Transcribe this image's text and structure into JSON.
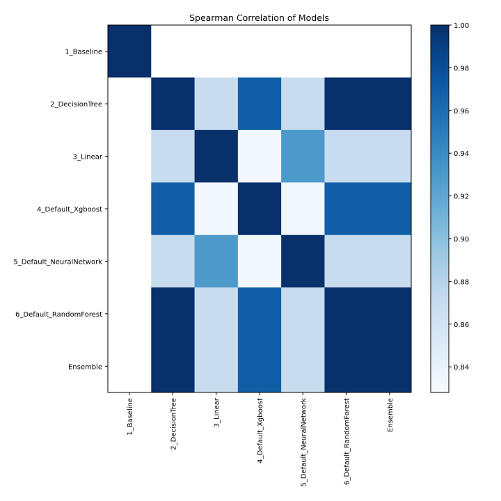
{
  "chart_data": {
    "type": "heatmap",
    "title": "Spearman Correlation of Models",
    "xlabel": "",
    "ylabel": "",
    "row_labels": [
      "1_Baseline",
      "2_DecisionTree",
      "3_Linear",
      "4_Default_Xgboost",
      "5_Default_NeuralNetwork",
      "6_Default_RandomForest",
      "Ensemble"
    ],
    "col_labels": [
      "1_Baseline",
      "2_DecisionTree",
      "3_Linear",
      "4_Default_Xgboost",
      "5_Default_NeuralNetwork",
      "6_Default_RandomForest",
      "Ensemble"
    ],
    "values": [
      [
        1.0,
        null,
        null,
        null,
        null,
        null,
        null
      ],
      [
        null,
        1.0,
        0.87,
        0.97,
        0.87,
        1.0,
        1.0
      ],
      [
        null,
        0.87,
        1.0,
        0.832,
        0.93,
        0.87,
        0.87
      ],
      [
        null,
        0.97,
        0.832,
        1.0,
        0.832,
        0.97,
        0.97
      ],
      [
        null,
        0.87,
        0.93,
        0.832,
        1.0,
        0.87,
        0.87
      ],
      [
        null,
        1.0,
        0.87,
        0.97,
        0.87,
        1.0,
        1.0
      ],
      [
        null,
        1.0,
        0.87,
        0.97,
        0.87,
        1.0,
        1.0
      ]
    ],
    "colorscale": "Blues",
    "colorbar": {
      "min": 0.828,
      "max": 1.0,
      "ticks": [
        0.84,
        0.86,
        0.88,
        0.9,
        0.92,
        0.94,
        0.96,
        0.98,
        1.0
      ],
      "tick_labels": [
        "0.84",
        "0.86",
        "0.88",
        "0.90",
        "0.92",
        "0.94",
        "0.96",
        "0.98",
        "1.00"
      ]
    },
    "grid": false,
    "legend": "none"
  }
}
